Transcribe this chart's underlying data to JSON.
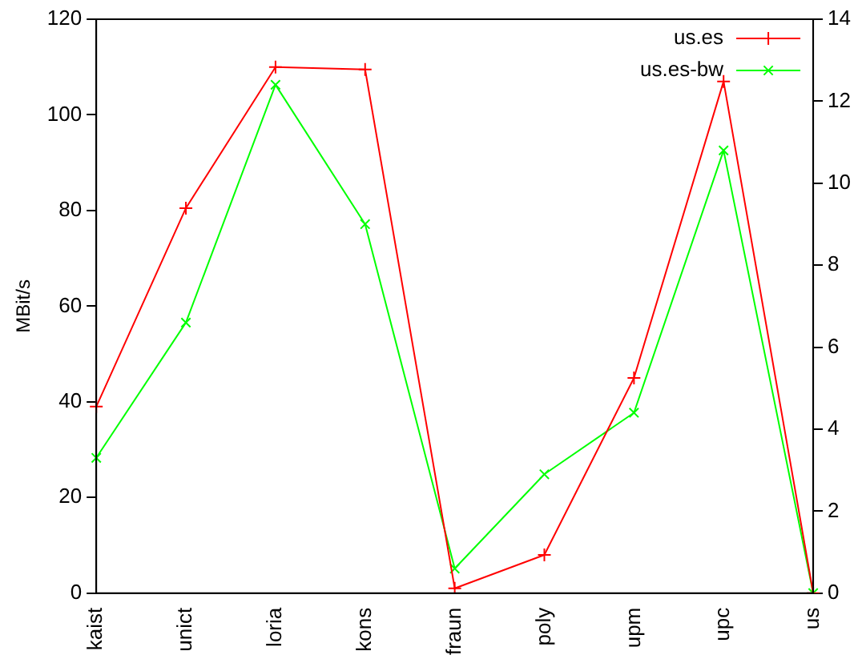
{
  "chart_data": {
    "type": "line",
    "ylabel": "MBit/s",
    "categories": [
      "kaist",
      "unict",
      "loria",
      "kons",
      "fraun",
      "poly",
      "upm",
      "upc",
      "us"
    ],
    "series": [
      {
        "name": "us.es",
        "color": "#ff0000",
        "values": [
          39,
          80.5,
          110,
          109.5,
          1,
          8,
          45,
          107,
          0
        ]
      },
      {
        "name": "us.es-bw",
        "color": "#00ff00",
        "axis": "y2",
        "values": [
          3.3,
          6.6,
          12.4,
          9.0,
          0.6,
          2.9,
          4.4,
          10.8,
          0
        ]
      }
    ],
    "ylim": [
      0,
      120
    ],
    "yticks": [
      0,
      20,
      40,
      60,
      80,
      100,
      120
    ],
    "y2lim": [
      0,
      14
    ],
    "y2ticks": [
      0,
      2,
      4,
      6,
      8,
      10,
      12,
      14
    ],
    "grid": false,
    "legend": "top right",
    "marker": "cross",
    "line_style": "solid"
  }
}
